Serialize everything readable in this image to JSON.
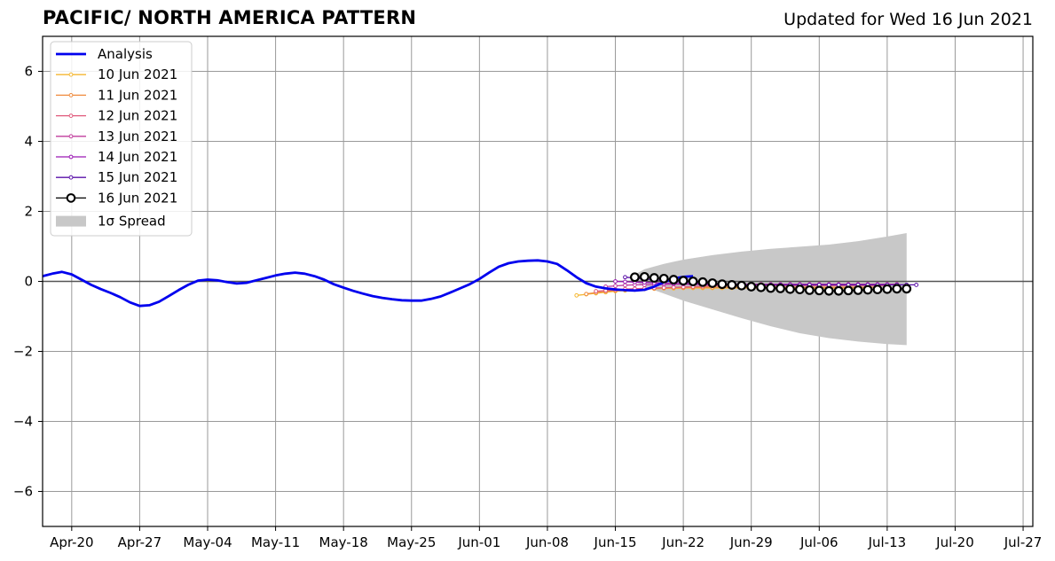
{
  "header": {
    "title": "PACIFIC/ NORTH AMERICA PATTERN",
    "updated": "Updated for Wed 16 Jun 2021"
  },
  "chart_data": {
    "type": "line",
    "title": "PACIFIC/ NORTH AMERICA PATTERN",
    "xlabel": "",
    "ylabel": "",
    "ylim": [
      -7,
      7
    ],
    "xlim": [
      "2021-04-17",
      "2021-07-28"
    ],
    "y_ticks": [
      -6,
      -4,
      -2,
      0,
      2,
      4,
      6
    ],
    "y_tick_labels": [
      "−6",
      "−4",
      "−2",
      "0",
      "2",
      "4",
      "6"
    ],
    "x_ticks": [
      "2021-04-20",
      "2021-04-27",
      "2021-05-04",
      "2021-05-11",
      "2021-05-18",
      "2021-05-25",
      "2021-06-01",
      "2021-06-08",
      "2021-06-15",
      "2021-06-22",
      "2021-06-29",
      "2021-07-06",
      "2021-07-13",
      "2021-07-20",
      "2021-07-27"
    ],
    "x_tick_labels": [
      "Apr-20",
      "Apr-27",
      "May-04",
      "May-11",
      "May-18",
      "May-25",
      "Jun-01",
      "Jun-08",
      "Jun-15",
      "Jun-22",
      "Jun-29",
      "Jul-06",
      "Jul-13",
      "Jul-20",
      "Jul-27"
    ],
    "grid": true,
    "legend_position": "top-left",
    "colors": {
      "analysis": "#0000ee",
      "spread": "#c8c8c8",
      "grid": "#999999",
      "zero_line": "#555555"
    },
    "analysis": {
      "name": "Analysis",
      "color": "#0000ee",
      "start_date": "2021-04-17",
      "values": [
        0.15,
        0.22,
        0.27,
        0.2,
        0.05,
        -0.1,
        -0.22,
        -0.33,
        -0.45,
        -0.6,
        -0.7,
        -0.68,
        -0.58,
        -0.42,
        -0.25,
        -0.1,
        0.02,
        0.05,
        0.03,
        -0.02,
        -0.06,
        -0.04,
        0.03,
        0.1,
        0.17,
        0.22,
        0.25,
        0.22,
        0.15,
        0.05,
        -0.08,
        -0.18,
        -0.27,
        -0.35,
        -0.42,
        -0.47,
        -0.51,
        -0.54,
        -0.55,
        -0.55,
        -0.5,
        -0.43,
        -0.32,
        -0.2,
        -0.08,
        0.07,
        0.25,
        0.42,
        0.52,
        0.57,
        0.59,
        0.6,
        0.57,
        0.5,
        0.32,
        0.12,
        -0.05,
        -0.15,
        -0.2,
        -0.23,
        -0.25,
        -0.26,
        -0.24,
        -0.15,
        -0.02,
        0.08,
        0.13,
        0.15
      ]
    },
    "forecasts": [
      {
        "name": "10 Jun 2021",
        "color": "#f5b731",
        "start_date": "2021-06-11",
        "values": [
          -0.4,
          -0.37,
          -0.34,
          -0.31,
          -0.28,
          -0.26,
          -0.24,
          -0.22,
          -0.21,
          -0.2,
          -0.2,
          -0.19,
          -0.19,
          -0.19,
          -0.19,
          -0.19,
          -0.19,
          -0.19,
          -0.19,
          -0.19,
          -0.19,
          -0.19,
          -0.19,
          -0.19,
          -0.19,
          -0.19,
          -0.19,
          -0.19,
          -0.19,
          -0.19,
          -0.19
        ]
      },
      {
        "name": "11 Jun 2021",
        "color": "#ef8a3c",
        "start_date": "2021-06-12",
        "values": [
          -0.36,
          -0.32,
          -0.29,
          -0.26,
          -0.24,
          -0.22,
          -0.21,
          -0.2,
          -0.19,
          -0.18,
          -0.18,
          -0.17,
          -0.17,
          -0.17,
          -0.17,
          -0.17,
          -0.17,
          -0.17,
          -0.17,
          -0.17,
          -0.17,
          -0.17,
          -0.17,
          -0.17,
          -0.17,
          -0.17,
          -0.17,
          -0.17,
          -0.17,
          -0.17,
          -0.17
        ]
      },
      {
        "name": "12 Jun 2021",
        "color": "#e0597b",
        "start_date": "2021-06-13",
        "values": [
          -0.28,
          -0.26,
          -0.24,
          -0.22,
          -0.21,
          -0.2,
          -0.19,
          -0.18,
          -0.17,
          -0.16,
          -0.15,
          -0.14,
          -0.13,
          -0.12,
          -0.12,
          -0.12,
          -0.12,
          -0.12,
          -0.12,
          -0.12,
          -0.12,
          -0.12,
          -0.12,
          -0.12,
          -0.12,
          -0.12,
          -0.12,
          -0.12,
          -0.12,
          -0.12,
          -0.12
        ]
      },
      {
        "name": "13 Jun 2021",
        "color": "#c13d9d",
        "start_date": "2021-06-14",
        "values": [
          -0.15,
          -0.13,
          -0.11,
          -0.1,
          -0.1,
          -0.09,
          -0.09,
          -0.08,
          -0.08,
          -0.08,
          -0.08,
          -0.08,
          -0.08,
          -0.08,
          -0.08,
          -0.08,
          -0.08,
          -0.08,
          -0.08,
          -0.08,
          -0.08,
          -0.08,
          -0.08,
          -0.08,
          -0.08,
          -0.08,
          -0.08,
          -0.08,
          -0.08,
          -0.08,
          -0.08
        ]
      },
      {
        "name": "14 Jun 2021",
        "color": "#9b19b4",
        "start_date": "2021-06-15",
        "values": [
          0.0,
          -0.01,
          -0.02,
          -0.03,
          -0.04,
          -0.05,
          -0.06,
          -0.07,
          -0.08,
          -0.09,
          -0.1,
          -0.1,
          -0.1,
          -0.1,
          -0.1,
          -0.1,
          -0.1,
          -0.1,
          -0.1,
          -0.1,
          -0.1,
          -0.1,
          -0.1,
          -0.1,
          -0.1,
          -0.1,
          -0.1,
          -0.1,
          -0.1,
          -0.1,
          -0.1
        ]
      },
      {
        "name": "15 Jun 2021",
        "color": "#5a10a8",
        "start_date": "2021-06-16",
        "values": [
          0.12,
          0.1,
          0.07,
          0.05,
          0.02,
          0.0,
          -0.02,
          -0.04,
          -0.05,
          -0.06,
          -0.07,
          -0.08,
          -0.09,
          -0.1,
          -0.1,
          -0.1,
          -0.1,
          -0.1,
          -0.1,
          -0.1,
          -0.1,
          -0.1,
          -0.1,
          -0.1,
          -0.1,
          -0.1,
          -0.1,
          -0.1,
          -0.1,
          -0.1,
          -0.1
        ]
      },
      {
        "name": "16 Jun 2021",
        "color": "#000000",
        "start_date": "2021-06-17",
        "values": [
          0.12,
          0.13,
          0.1,
          0.08,
          0.05,
          0.02,
          0.0,
          -0.02,
          -0.05,
          -0.08,
          -0.1,
          -0.12,
          -0.15,
          -0.17,
          -0.19,
          -0.2,
          -0.22,
          -0.23,
          -0.25,
          -0.26,
          -0.27,
          -0.27,
          -0.26,
          -0.25,
          -0.24,
          -0.23,
          -0.22,
          -0.21,
          -0.21
        ]
      }
    ],
    "spread": {
      "name": "1σ Spread",
      "color": "#c8c8c8",
      "dates": [
        "2021-06-17",
        "2021-06-18",
        "2021-06-20",
        "2021-06-22",
        "2021-06-25",
        "2021-06-28",
        "2021-07-01",
        "2021-07-04",
        "2021-07-07",
        "2021-07-10",
        "2021-07-13",
        "2021-07-15"
      ],
      "upper": [
        0.2,
        0.35,
        0.5,
        0.62,
        0.75,
        0.85,
        0.93,
        0.99,
        1.05,
        1.15,
        1.28,
        1.38
      ],
      "lower": [
        0.0,
        -0.15,
        -0.35,
        -0.55,
        -0.8,
        -1.05,
        -1.28,
        -1.48,
        -1.62,
        -1.72,
        -1.79,
        -1.82
      ]
    }
  }
}
